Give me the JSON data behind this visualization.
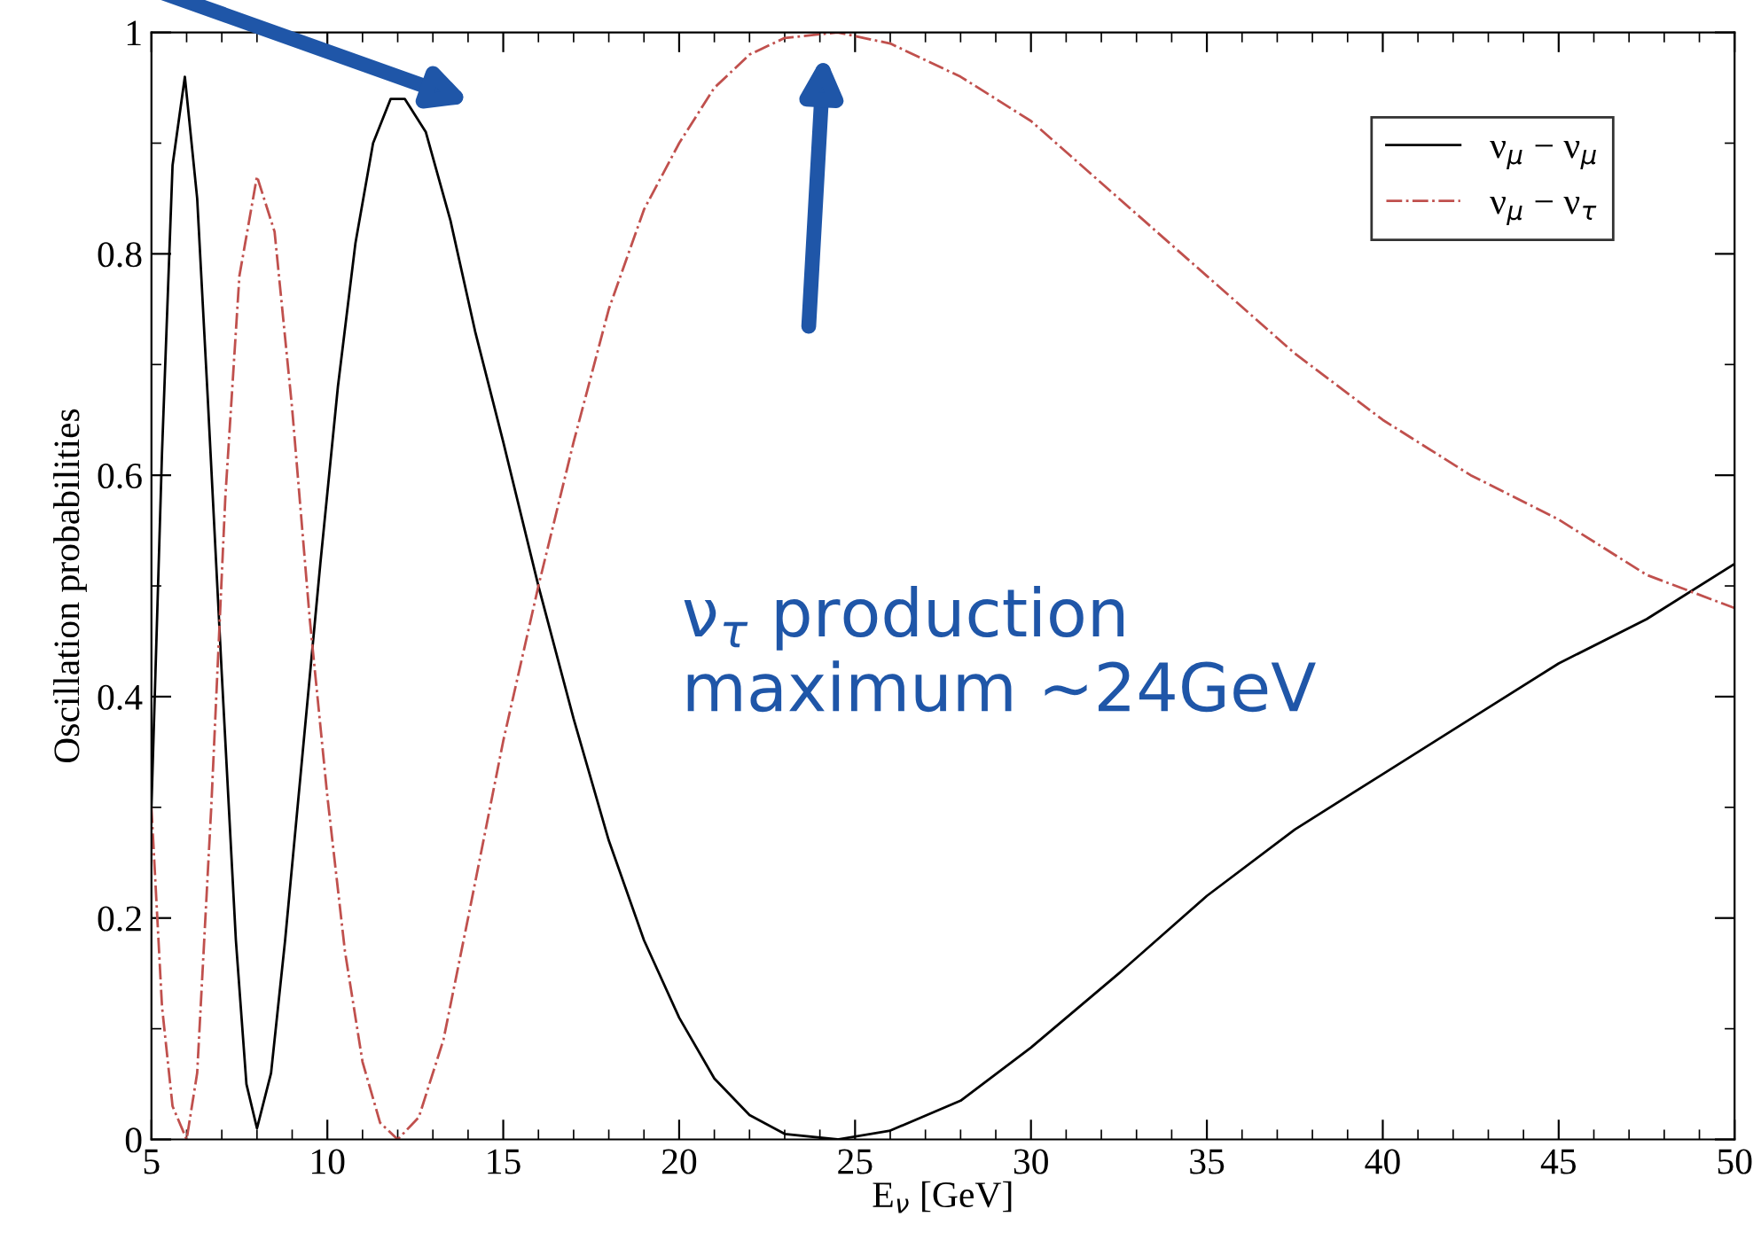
{
  "chart_data": {
    "type": "line",
    "xlabel": "E$_{ν}$ [GeV]",
    "ylabel": "Oscillation probabilities",
    "xlim": [
      5,
      50
    ],
    "ylim": [
      0,
      1
    ],
    "xticks": [
      5,
      10,
      15,
      20,
      25,
      30,
      35,
      40,
      45,
      50
    ],
    "yticks": [
      0,
      0.2,
      0.4,
      0.6,
      0.8,
      1
    ],
    "legend": "top right",
    "grid": false,
    "series": [
      {
        "name": "ν$_{μ}$ − ν$_{μ}$",
        "color": "#000000",
        "line_style": "solid",
        "x": [
          5,
          5.3,
          5.6,
          5.95,
          6.3,
          6.6,
          7.0,
          7.4,
          7.7,
          8.0,
          8.4,
          8.8,
          9.3,
          9.8,
          10.3,
          10.8,
          11.3,
          11.8,
          12.2,
          12.8,
          13.5,
          14.2,
          15,
          16,
          17,
          18,
          19,
          20,
          21,
          22,
          23,
          24.5,
          26,
          28,
          30,
          32.5,
          35,
          37.5,
          40,
          42.5,
          45,
          47.5,
          50
        ],
        "values": [
          0.3,
          0.62,
          0.88,
          0.96,
          0.85,
          0.67,
          0.42,
          0.18,
          0.05,
          0.01,
          0.06,
          0.18,
          0.35,
          0.52,
          0.68,
          0.81,
          0.9,
          0.94,
          0.94,
          0.91,
          0.83,
          0.73,
          0.63,
          0.5,
          0.38,
          0.27,
          0.18,
          0.11,
          0.055,
          0.022,
          0.005,
          0,
          0.008,
          0.035,
          0.083,
          0.15,
          0.22,
          0.28,
          0.33,
          0.38,
          0.43,
          0.47,
          0.52
        ]
      },
      {
        "name": "ν$_{μ}$ − ν$_{τ}$",
        "color": "#c0504d",
        "line_style": "dashdot",
        "x": [
          5,
          5.3,
          5.6,
          6.0,
          6.3,
          6.7,
          7.1,
          7.5,
          8.0,
          8.5,
          9.0,
          9.5,
          10,
          10.5,
          11,
          11.5,
          12,
          12.6,
          13.3,
          14,
          15,
          16,
          17,
          18,
          19,
          20,
          21,
          22,
          23,
          24.5,
          26,
          28,
          30,
          32.5,
          35,
          37.5,
          40,
          42.5,
          45,
          47.5,
          50
        ],
        "values": [
          0.3,
          0.12,
          0.03,
          0,
          0.06,
          0.3,
          0.58,
          0.78,
          0.87,
          0.82,
          0.66,
          0.47,
          0.31,
          0.17,
          0.07,
          0.015,
          0,
          0.02,
          0.09,
          0.2,
          0.36,
          0.5,
          0.63,
          0.75,
          0.84,
          0.9,
          0.95,
          0.98,
          0.995,
          1.0,
          0.99,
          0.96,
          0.92,
          0.85,
          0.78,
          0.71,
          0.65,
          0.6,
          0.56,
          0.51,
          0.48
        ]
      }
    ],
    "annotations": [
      "ν$_{τ}$ production\nmaximum ~24GeV"
    ]
  }
}
